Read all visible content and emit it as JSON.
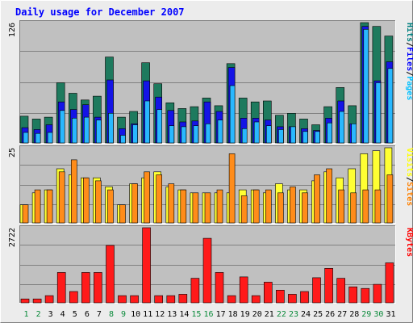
{
  "chart_data": {
    "type": "bar",
    "title": "Daily usage for December 2007",
    "colors": {
      "background": "#ececec",
      "plot_background": "#c0c0c0",
      "title": "#0000ff",
      "day_weekday": "#000000",
      "day_weekend": "#0a8a3a"
    },
    "categories": [
      "1",
      "2",
      "3",
      "4",
      "5",
      "6",
      "7",
      "8",
      "9",
      "10",
      "11",
      "12",
      "13",
      "14",
      "15",
      "16",
      "17",
      "18",
      "19",
      "20",
      "21",
      "22",
      "23",
      "24",
      "25",
      "26",
      "27",
      "28",
      "29",
      "30",
      "31"
    ],
    "weekend_days": [
      "1",
      "2",
      "8",
      "9",
      "15",
      "16",
      "22",
      "23",
      "29",
      "30"
    ],
    "panels": [
      {
        "name": "hits",
        "max_label": "126",
        "ymax": 126,
        "side_labels": [
          {
            "text": "Pages",
            "color": "#00c0ff"
          },
          {
            "text": "/",
            "color": "#000000"
          },
          {
            "text": "Files",
            "color": "#0000ff"
          },
          {
            "text": "/",
            "color": "#000000"
          },
          {
            "text": "Hits",
            "color": "#008080"
          }
        ],
        "series": [
          {
            "name": "Hits",
            "color": "#1e7a5e",
            "values": [
              28,
              25,
              27,
              63,
              52,
              45,
              49,
              90,
              27,
              33,
              84,
              62,
              42,
              36,
              38,
              47,
              39,
              83,
              47,
              43,
              44,
              29,
              31,
              25,
              19,
              38,
              58,
              39,
              126,
              122,
              112
            ]
          },
          {
            "name": "Files",
            "color": "#1414e6",
            "values": [
              16,
              14,
              19,
              43,
              35,
              40,
              27,
              66,
              15,
              20,
              65,
              48,
              34,
              22,
              23,
              43,
              33,
              79,
              26,
              26,
              24,
              17,
              17,
              15,
              13,
              26,
              44,
              20,
              122,
              65,
              85
            ]
          },
          {
            "name": "Pages",
            "color": "#29b8ff",
            "values": [
              11,
              10,
              11,
              34,
              26,
              27,
              24,
              31,
              8,
              19,
              44,
              35,
              18,
              17,
              18,
              20,
              24,
              60,
              15,
              22,
              18,
              14,
              17,
              12,
              12,
              21,
              33,
              20,
              119,
              63,
              78
            ]
          }
        ]
      },
      {
        "name": "visits",
        "max_label": "25",
        "ymax": 25,
        "side_labels": [
          {
            "text": "Sites",
            "color": "#ff8000"
          },
          {
            "text": "/",
            "color": "#000000"
          },
          {
            "text": "Visits",
            "color": "#ffff00"
          }
        ],
        "series": [
          {
            "name": "Visits",
            "color": "#ffff33",
            "values": [
              6,
              10,
              11,
              18,
              16,
              15,
              15,
              12,
              6,
              13,
              15,
              17,
              12,
              11,
              10,
              10,
              10,
              10,
              11,
              11,
              10,
              13,
              11,
              11,
              14,
              17,
              15,
              18,
              23,
              24,
              25
            ]
          },
          {
            "name": "Sites",
            "color": "#ff8c1a",
            "values": [
              6,
              11,
              11,
              17,
              21,
              15,
              14,
              11,
              6,
              13,
              17,
              16,
              13,
              11,
              10,
              10,
              11,
              23,
              9,
              11,
              11,
              10,
              12,
              10,
              16,
              18,
              11,
              10,
              11,
              11,
              16
            ]
          }
        ]
      },
      {
        "name": "kbytes",
        "max_label": "2722",
        "ymax": 2722,
        "side_labels": [
          {
            "text": "KBytes",
            "color": "#ff0000"
          }
        ],
        "series": [
          {
            "name": "KBytes",
            "color": "#ff1a1a",
            "values": [
              140,
              140,
              260,
              1100,
              410,
              1100,
              1100,
              2080,
              260,
              260,
              2722,
              260,
              260,
              310,
              890,
              2340,
              1100,
              260,
              940,
              260,
              750,
              460,
              310,
              410,
              910,
              1250,
              890,
              580,
              520,
              670,
              1450
            ]
          }
        ]
      }
    ],
    "grid": true
  }
}
